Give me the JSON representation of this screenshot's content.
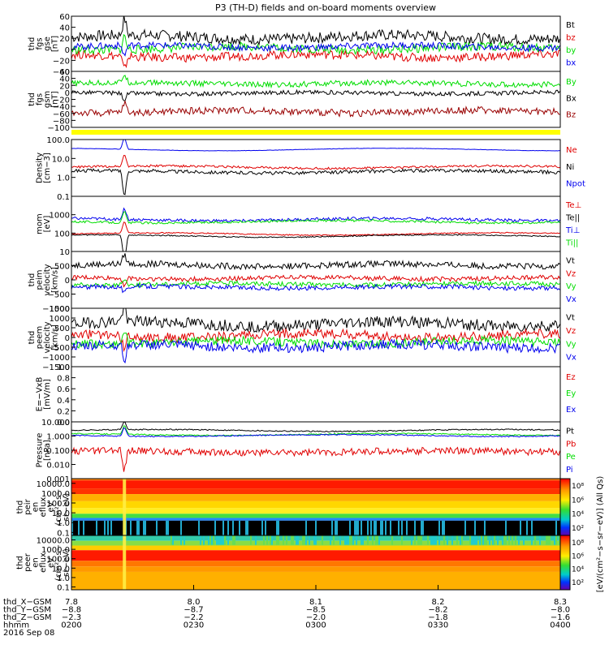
{
  "title": "P3 (TH-D) fields and on-board moments overview",
  "chart_data": {
    "type": "line",
    "title": "P3 (TH-D) fields and on-board moments overview",
    "panels": [
      {
        "id": "fgs-gse",
        "ylabel": [
          "thd",
          "fgs",
          "gse",
          "[nT]"
        ],
        "ylim": [
          -40,
          60
        ],
        "ticks": [
          "60",
          "40",
          "20",
          "0",
          "−20",
          "−40"
        ],
        "tick_values": [
          60,
          40,
          20,
          0,
          -20,
          -40
        ],
        "log": false,
        "series": [
          {
            "name": "Bt",
            "color": "#000000",
            "level": 22,
            "noise": 10
          },
          {
            "name": "bz",
            "color": "#e00000",
            "level": -12,
            "noise": 8
          },
          {
            "name": "by",
            "color": "#00dd00",
            "level": 2,
            "noise": 8
          },
          {
            "name": "bx",
            "color": "#0000ee",
            "level": 5,
            "noise": 6
          }
        ]
      },
      {
        "id": "fgs-gsm",
        "ylabel": [
          "thd",
          "fgs",
          "gsm",
          "[nT]"
        ],
        "ylim": [
          -100,
          60
        ],
        "ticks": [
          "60",
          "40",
          "20",
          "0",
          "−20",
          "−40",
          "−60",
          "−80",
          "−100"
        ],
        "tick_values": [
          60,
          40,
          20,
          0,
          -20,
          -40,
          -60,
          -80,
          -100
        ],
        "log": false,
        "series": [
          {
            "name": "By",
            "color": "#00dd00",
            "level": 25,
            "noise": 8
          },
          {
            "name": "Bx",
            "color": "#000000",
            "level": -2,
            "noise": 6
          },
          {
            "name": "Bz",
            "color": "#990000",
            "level": -55,
            "noise": 10
          }
        ]
      },
      {
        "id": "density",
        "ylabel": [
          "Density",
          "[cm−3]"
        ],
        "ylim": [
          0.1,
          100
        ],
        "ticks": [
          "100.0",
          "10.0",
          "1.0",
          "0.1"
        ],
        "tick_values": [
          100,
          10,
          1,
          0.1
        ],
        "log": true,
        "series": [
          {
            "name": "Ne",
            "color": "#e00000",
            "level": 3.5,
            "noise": 0.06
          },
          {
            "name": "Ni",
            "color": "#000000",
            "level": 2.0,
            "noise": 0.09
          },
          {
            "name": "Npot",
            "color": "#0000ee",
            "level": 30,
            "noise": 0.01
          }
        ]
      },
      {
        "id": "temperature",
        "ylabel": [
          "mom",
          "[eV]"
        ],
        "ylim": [
          10,
          10000
        ],
        "ticks": [
          "1000",
          "100",
          "10"
        ],
        "tick_values": [
          1000,
          100,
          10
        ],
        "log": true,
        "series": [
          {
            "name": "Te⊥",
            "color": "#e00000",
            "level": 90,
            "noise": 0.03
          },
          {
            "name": "Te||",
            "color": "#000000",
            "level": 70,
            "noise": 0.03
          },
          {
            "name": "Ti⊥",
            "color": "#0000ee",
            "level": 550,
            "noise": 0.08
          },
          {
            "name": "Ti||",
            "color": "#00dd00",
            "level": 420,
            "noise": 0.06
          }
        ]
      },
      {
        "id": "peim-velocity",
        "ylabel": [
          "thd",
          "peim",
          "velocity",
          "[km/s]"
        ],
        "ylim": [
          -1000,
          1000
        ],
        "ticks": [
          "500",
          "0",
          "−500",
          "−1000"
        ],
        "tick_values": [
          500,
          0,
          -500,
          -1000
        ],
        "log": false,
        "series": [
          {
            "name": "Vt",
            "color": "#000000",
            "level": 520,
            "noise": 110
          },
          {
            "name": "Vz",
            "color": "#e00000",
            "level": 60,
            "noise": 80
          },
          {
            "name": "Vy",
            "color": "#00dd00",
            "level": -150,
            "noise": 80
          },
          {
            "name": "Vx",
            "color": "#0000ee",
            "level": -260,
            "noise": 80
          }
        ]
      },
      {
        "id": "peem-velocity",
        "ylabel": [
          "thd",
          "peem",
          "velocity",
          "[km/s]"
        ],
        "ylim": [
          -1500,
          1500
        ],
        "ticks": [
          "1500",
          "1000",
          "500",
          "0",
          "−500",
          "−1000",
          "−1500"
        ],
        "tick_values": [
          1500,
          1000,
          500,
          0,
          -500,
          -1000,
          -1500
        ],
        "log": false,
        "series": [
          {
            "name": "Vt",
            "color": "#000000",
            "level": 700,
            "noise": 300
          },
          {
            "name": "Vz",
            "color": "#e00000",
            "level": 100,
            "noise": 250
          },
          {
            "name": "Vy",
            "color": "#00dd00",
            "level": -250,
            "noise": 220
          },
          {
            "name": "Vx",
            "color": "#0000ee",
            "level": -450,
            "noise": 250
          }
        ]
      },
      {
        "id": "efield",
        "ylabel": [
          "E=−VxB",
          "[mV/m]"
        ],
        "ylim": [
          0,
          1
        ],
        "ticks": [
          "1.0",
          "0.8",
          "0.6",
          "0.4",
          "0.2",
          "0.0"
        ],
        "tick_values": [
          1.0,
          0.8,
          0.6,
          0.4,
          0.2,
          0.0
        ],
        "log": false,
        "series": [
          {
            "name": "Ez",
            "color": "#e00000",
            "empty": true
          },
          {
            "name": "Ey",
            "color": "#00dd00",
            "empty": true
          },
          {
            "name": "Ex",
            "color": "#0000ee",
            "empty": true
          }
        ]
      },
      {
        "id": "pressure",
        "ylabel": [
          "Pressure",
          "[nPa]"
        ],
        "ylim": [
          0.001,
          10
        ],
        "ticks": [
          "10.000",
          "1.000",
          "0.100",
          "0.010",
          "0.001"
        ],
        "tick_values": [
          10,
          1,
          0.1,
          0.01,
          0.001
        ],
        "log": true,
        "series": [
          {
            "name": "Pt",
            "color": "#000000",
            "level": 2.5,
            "noise": 0.04
          },
          {
            "name": "Pb",
            "color": "#e00000",
            "level": 0.08,
            "noise": 0.25
          },
          {
            "name": "Pe",
            "color": "#00dd00",
            "level": 1.3,
            "noise": 0.04
          },
          {
            "name": "Pi",
            "color": "#0000ee",
            "level": 1.1,
            "noise": 0.04
          }
        ]
      },
      {
        "id": "peir-spec",
        "type": "heatmap",
        "ylabel": [
          "thd",
          "peir",
          "en",
          "eflux",
          "eV",
          "(cm²−s−",
          "sr−eV)"
        ],
        "ticks": [
          "10000.0",
          "1000.0",
          "100.0",
          "10.0",
          "1.0",
          "0.1"
        ],
        "tick_values": [
          10000,
          1000,
          100,
          10,
          1,
          0.1
        ],
        "ylim": [
          0.05,
          30000
        ]
      },
      {
        "id": "peer-spec",
        "type": "heatmap",
        "ylabel": [
          "thd",
          "peer",
          "en",
          "eflux",
          "eV",
          "(cm²−s−",
          "sr−eV)"
        ],
        "ticks": [
          "10000.0",
          "1000.0",
          "100.0",
          "10.0",
          "1.0",
          "0.1"
        ],
        "tick_values": [
          10000,
          1000,
          100,
          10,
          1,
          0.1
        ],
        "ylim": [
          0.05,
          30000
        ]
      }
    ],
    "colorbar": {
      "label": "[eV/(cm²−s−sr−eV)] (All Qs)",
      "upper_ticks": [
        "10⁸",
        "10⁶",
        "10⁴",
        "10²"
      ],
      "lower_ticks": [
        "10⁸",
        "10⁶",
        "10⁴",
        "10²"
      ]
    },
    "x_axis": {
      "time_range": [
        "02:00",
        "04:00"
      ],
      "rows": [
        {
          "label": "thd_X−GSM",
          "values": [
            "7.8",
            "8.0",
            "8.1",
            "8.2",
            "8.3"
          ]
        },
        {
          "label": "thd_Y−GSM",
          "values": [
            "−8.8",
            "−8.7",
            "−8.5",
            "−8.2",
            "−8.0"
          ]
        },
        {
          "label": "thd_Z−GSM",
          "values": [
            "−2.3",
            "−2.2",
            "−2.0",
            "−1.8",
            "−1.6"
          ]
        },
        {
          "label": "hhmm",
          "values": [
            "0200",
            "0230",
            "0300",
            "0330",
            "0400"
          ]
        }
      ],
      "date": "2016 Sep 08"
    },
    "event_time": "02:13",
    "flag_bar_color": "#ffff00"
  }
}
